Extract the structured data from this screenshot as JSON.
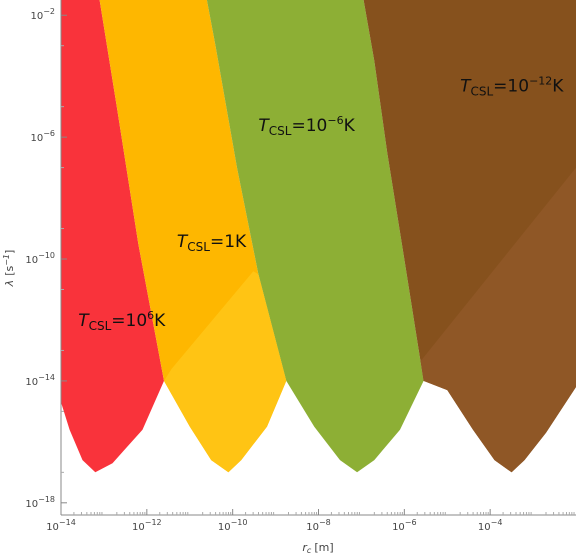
{
  "chart_data": {
    "type": "area",
    "title": "",
    "xlabel": {
      "symbol": "r",
      "subscript": "c",
      "unit": "[m]"
    },
    "ylabel": {
      "symbol": "λ",
      "unit": "[s",
      "unit_sup": "−1",
      "unit_close": "]"
    },
    "x_scale": "log",
    "y_scale": "log",
    "xlim": [
      -14,
      -2
    ],
    "ylim": [
      -18.4,
      -1.5
    ],
    "x_ticks": [
      {
        "base": "10",
        "exp": "−14",
        "value": -14
      },
      {
        "base": "10",
        "exp": "−12",
        "value": -12
      },
      {
        "base": "10",
        "exp": "−10",
        "value": -10
      },
      {
        "base": "10",
        "exp": "−8",
        "value": -8
      },
      {
        "base": "10",
        "exp": "−6",
        "value": -6
      },
      {
        "base": "10",
        "exp": "−4",
        "value": -4
      }
    ],
    "y_ticks": [
      {
        "base": "10",
        "exp": "−2",
        "value": -2
      },
      {
        "base": "10",
        "exp": "−6",
        "value": -6
      },
      {
        "base": "10",
        "exp": "−10",
        "value": -10
      },
      {
        "base": "10",
        "exp": "−14",
        "value": -14
      },
      {
        "base": "10",
        "exp": "−18",
        "value": -18
      }
    ],
    "regions": [
      {
        "label": {
          "T": "T",
          "sub": "CSL",
          "eq": "=",
          "mant": "10",
          "exp": "6",
          "unit": "K"
        },
        "label_at": [
          -13.6,
          -12.2
        ],
        "color": "#f9333b",
        "shade": "#f9333b",
        "polygon": [
          [
            -14.0,
            -1.5
          ],
          [
            -13.1,
            -1.5
          ],
          [
            -12.7,
            -5.0
          ],
          [
            -12.2,
            -9.5
          ],
          [
            -11.6,
            -14.0
          ],
          [
            -12.1,
            -15.6
          ],
          [
            -12.8,
            -16.7
          ],
          [
            -13.2,
            -17.0
          ],
          [
            -13.5,
            -16.6
          ],
          [
            -13.8,
            -15.6
          ],
          [
            -14.0,
            -14.7
          ]
        ],
        "shade_polygon": []
      },
      {
        "label": {
          "T": "T",
          "sub": "CSL",
          "eq": "=",
          "mant": "",
          "exp": "",
          "unit": "1K"
        },
        "label_at": [
          -11.3,
          -9.6
        ],
        "color": "#feb700",
        "shade": "#ffc414",
        "polygon": [
          [
            -13.1,
            -1.5
          ],
          [
            -10.6,
            -1.5
          ],
          [
            -10.4,
            -3.0
          ],
          [
            -9.9,
            -7.0
          ],
          [
            -9.4,
            -10.5
          ],
          [
            -8.75,
            -14.0
          ],
          [
            -9.2,
            -15.5
          ],
          [
            -9.8,
            -16.6
          ],
          [
            -10.1,
            -17.0
          ],
          [
            -10.5,
            -16.6
          ],
          [
            -11.0,
            -15.5
          ],
          [
            -11.6,
            -14.0
          ],
          [
            -12.2,
            -9.5
          ],
          [
            -12.7,
            -5.0
          ]
        ],
        "shade_polygon": [
          [
            -9.52,
            -10.4
          ],
          [
            -9.4,
            -10.5
          ],
          [
            -8.75,
            -14.0
          ],
          [
            -9.2,
            -15.5
          ],
          [
            -9.8,
            -16.6
          ],
          [
            -10.1,
            -17.0
          ],
          [
            -10.5,
            -16.6
          ],
          [
            -11.0,
            -15.5
          ],
          [
            -11.6,
            -14.0
          ],
          [
            -11.42,
            -13.6
          ]
        ]
      },
      {
        "label": {
          "T": "T",
          "sub": "CSL",
          "eq": "=",
          "mant": "10",
          "exp": "−6",
          "unit": "K"
        },
        "label_at": [
          -9.4,
          -5.8
        ],
        "color": "#8daf35",
        "shade": "#8daf35",
        "polygon": [
          [
            -10.6,
            -1.5
          ],
          [
            -6.95,
            -1.5
          ],
          [
            -6.7,
            -3.5
          ],
          [
            -6.4,
            -6.5
          ],
          [
            -6.0,
            -10.0
          ],
          [
            -5.55,
            -14.0
          ],
          [
            -6.1,
            -15.6
          ],
          [
            -6.7,
            -16.6
          ],
          [
            -7.1,
            -17.0
          ],
          [
            -7.5,
            -16.6
          ],
          [
            -8.1,
            -15.5
          ],
          [
            -8.75,
            -14.0
          ],
          [
            -9.4,
            -10.5
          ],
          [
            -9.9,
            -7.0
          ],
          [
            -10.4,
            -3.0
          ]
        ],
        "shade_polygon": []
      },
      {
        "label": {
          "T": "T",
          "sub": "CSL",
          "eq": "=",
          "mant": "10",
          "exp": "−12",
          "unit": "K"
        },
        "label_at": [
          -4.7,
          -4.5
        ],
        "color": "#86511d",
        "shade": "#8f5726",
        "polygon": [
          [
            -6.95,
            -1.5
          ],
          [
            -2.0,
            -1.5
          ],
          [
            -2.0,
            -14.2
          ],
          [
            -2.7,
            -15.7
          ],
          [
            -3.2,
            -16.6
          ],
          [
            -3.5,
            -17.0
          ],
          [
            -3.9,
            -16.6
          ],
          [
            -4.4,
            -15.6
          ],
          [
            -5.0,
            -14.3
          ],
          [
            -5.55,
            -14.0
          ],
          [
            -6.0,
            -10.0
          ],
          [
            -6.4,
            -6.5
          ],
          [
            -6.7,
            -3.5
          ]
        ],
        "shade_polygon": [
          [
            -2.0,
            -7.0
          ],
          [
            -2.0,
            -14.2
          ],
          [
            -2.7,
            -15.7
          ],
          [
            -3.2,
            -16.6
          ],
          [
            -3.5,
            -17.0
          ],
          [
            -3.9,
            -16.6
          ],
          [
            -4.4,
            -15.6
          ],
          [
            -5.0,
            -14.3
          ],
          [
            -5.55,
            -14.0
          ],
          [
            -5.62,
            -13.35
          ]
        ]
      }
    ],
    "grid": false,
    "legend": "none"
  }
}
